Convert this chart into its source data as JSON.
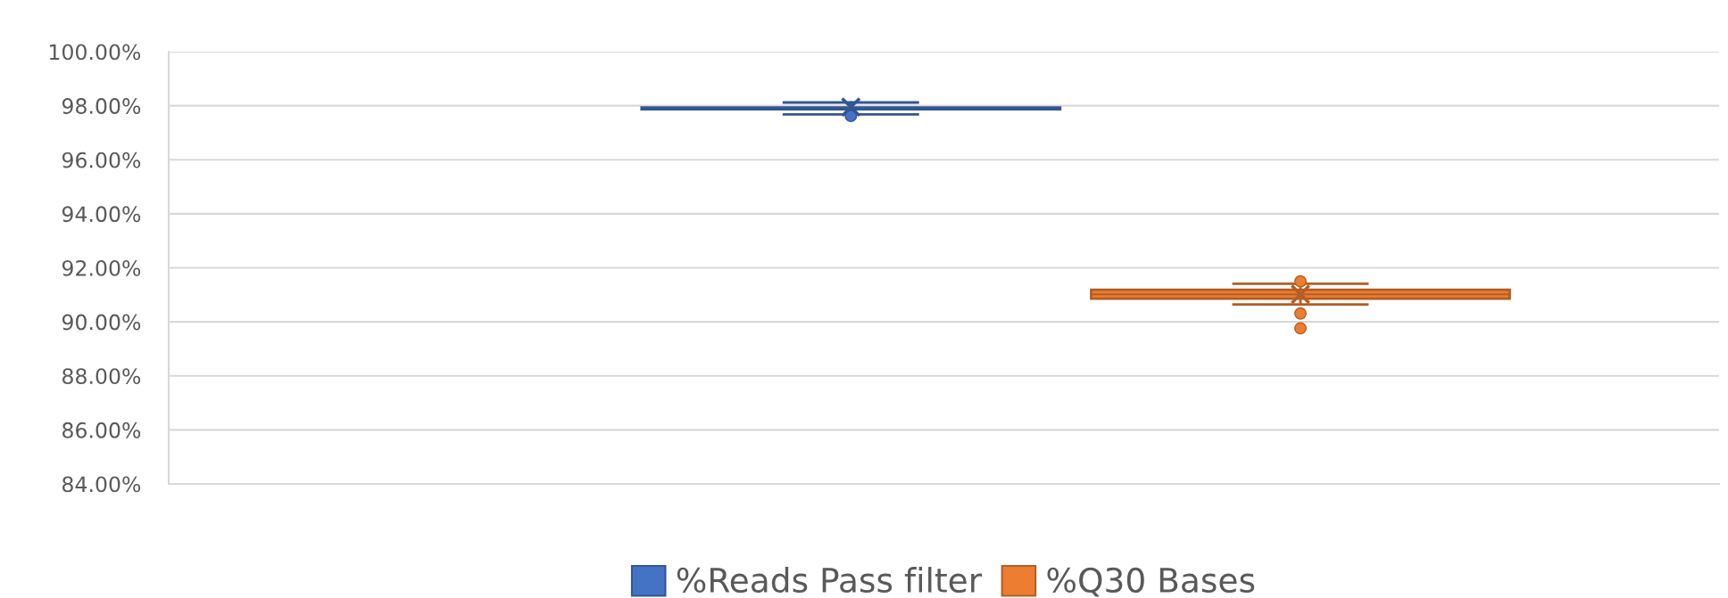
{
  "chart_data": {
    "type": "box",
    "categories": [
      null
    ],
    "series": [
      {
        "name": "%Reads Pass filter",
        "color": "#4472c4",
        "boxes": [
          {
            "low": 97.68,
            "q1": 97.87,
            "median": 97.9,
            "q3": 97.93,
            "high": 98.12,
            "mean": 97.95,
            "outliers": [
              97.62
            ]
          }
        ]
      },
      {
        "name": "%Q30 Bases",
        "color": "#ed7d31",
        "boxes": [
          {
            "low": 90.64,
            "q1": 90.86,
            "median": 91.02,
            "q3": 91.19,
            "high": 91.41,
            "mean": 91.02,
            "outliers": [
              91.5,
              90.31,
              89.76
            ]
          }
        ]
      }
    ],
    "ylim": [
      84,
      100
    ],
    "yticks": [
      {
        "value": 84,
        "label": "84.00%"
      },
      {
        "value": 86,
        "label": "86.00%"
      },
      {
        "value": 88,
        "label": "88.00%"
      },
      {
        "value": 90,
        "label": "90.00%"
      },
      {
        "value": 92,
        "label": "92.00%"
      },
      {
        "value": 94,
        "label": "94.00%"
      },
      {
        "value": 96,
        "label": "96.00%"
      },
      {
        "value": 98,
        "label": "98.00%"
      },
      {
        "value": 100,
        "label": "100.00%"
      }
    ],
    "grid": "y",
    "legend": "bottom",
    "marker": "circle"
  }
}
